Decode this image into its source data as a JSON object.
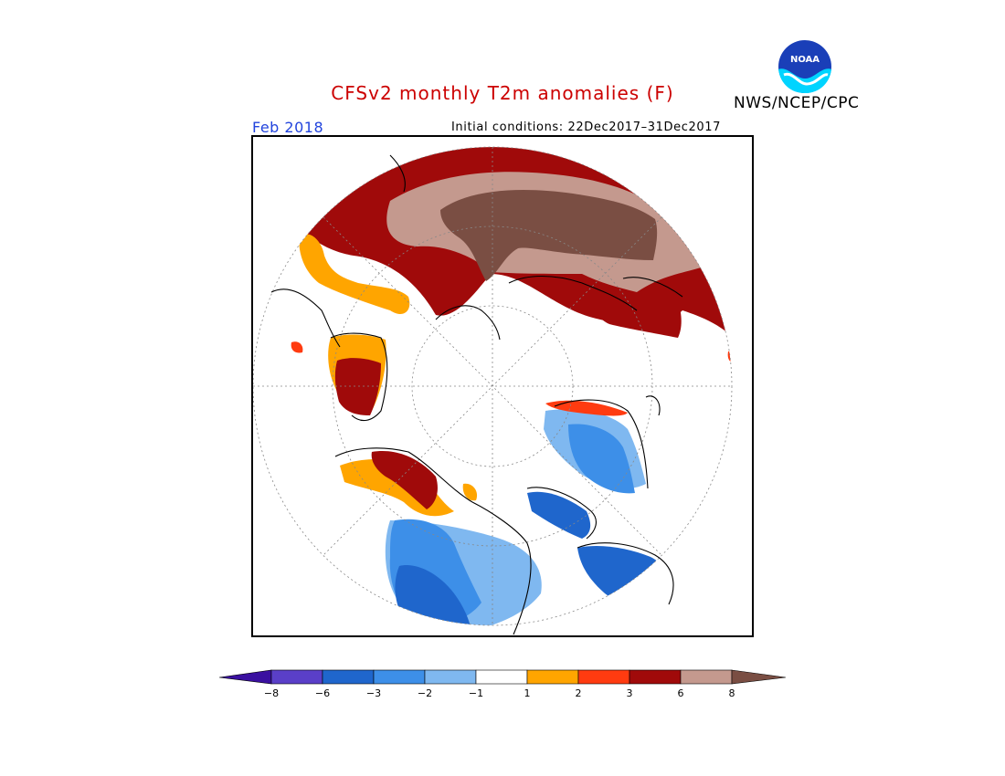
{
  "header": {
    "title": "CFSv2 monthly T2m anomalies (F)",
    "agency": "NWS/NCEP/CPC",
    "logo_text": "NOAA",
    "forecast_month": "Feb 2018",
    "initial_conditions": "Initial conditions: 22Dec2017–31Dec2017"
  },
  "legend": {
    "tick_labels": [
      "−8",
      "−6",
      "−3",
      "−2",
      "−1",
      "1",
      "2",
      "3",
      "6",
      "8"
    ],
    "colors": [
      "#3a10a0",
      "#5a3fc8",
      "#1f66cc",
      "#3d8fe8",
      "#7fb8f0",
      "#ffffff",
      "#ffa500",
      "#ff3b10",
      "#a00a0a",
      "#c4998e",
      "#7a4e43"
    ]
  },
  "colors": {
    "title": "#cc0000",
    "month": "#2244dd",
    "warm_dark": "#a00a0a",
    "warm_red": "#ff3b10",
    "warm_orange": "#ffa500",
    "warm_pink": "#c4998e",
    "warm_brown": "#7a4e43",
    "cold_light": "#7fb8f0",
    "cold_mid": "#3d8fe8",
    "cold_dark": "#1f66cc",
    "cold_purple": "#5a3fc8"
  }
}
